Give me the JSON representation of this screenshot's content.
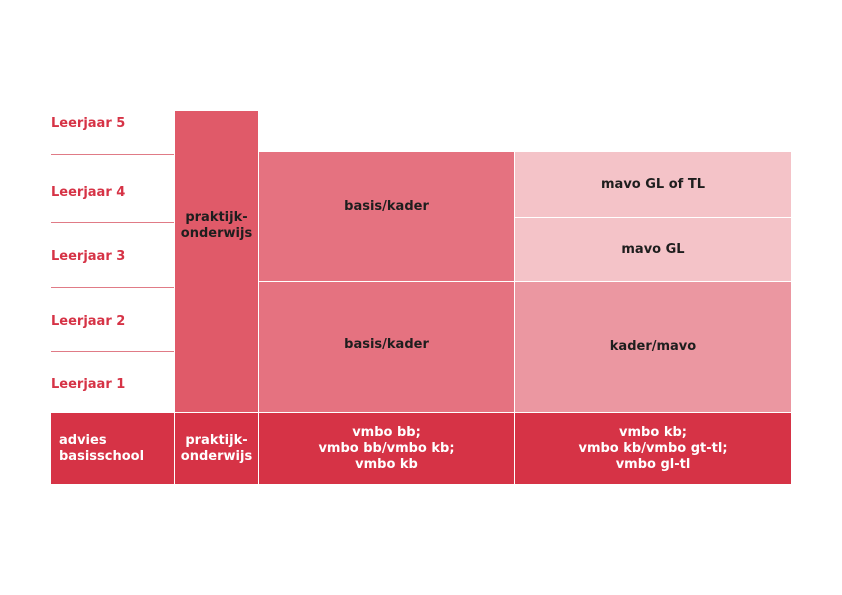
{
  "rows": {
    "leerjaar5": "Leerjaar 5",
    "leerjaar4": "Leerjaar 4",
    "leerjaar3": "Leerjaar 3",
    "leerjaar2": "Leerjaar 2",
    "leerjaar1": "Leerjaar 1"
  },
  "blocks": {
    "praktijk": "praktijk-\nonderwijs",
    "basis_kader_upper": "basis/kader",
    "basis_kader_lower": "basis/kader",
    "mavo_gl_of_tl": "mavo GL of TL",
    "mavo_gl": "mavo GL",
    "kader_mavo": "kader/mavo"
  },
  "footer": {
    "advies": "advies\nbasisschool",
    "praktijk": "praktijk-\nonderwijs",
    "vmbo_bb": "vmbo bb;\nvmbo bb/vmbo kb;\nvmbo kb",
    "vmbo_kb": "vmbo kb;\nvmbo kb/vmbo gt-tl;\nvmbo gl-tl"
  },
  "colors": {
    "red_dark": "#d63346",
    "red_praktijk": "#e05a69",
    "red_medium": "#e57280",
    "pink_mid": "#eb97a1",
    "pink_light": "#f4c3c8",
    "label_red": "#d63346"
  }
}
